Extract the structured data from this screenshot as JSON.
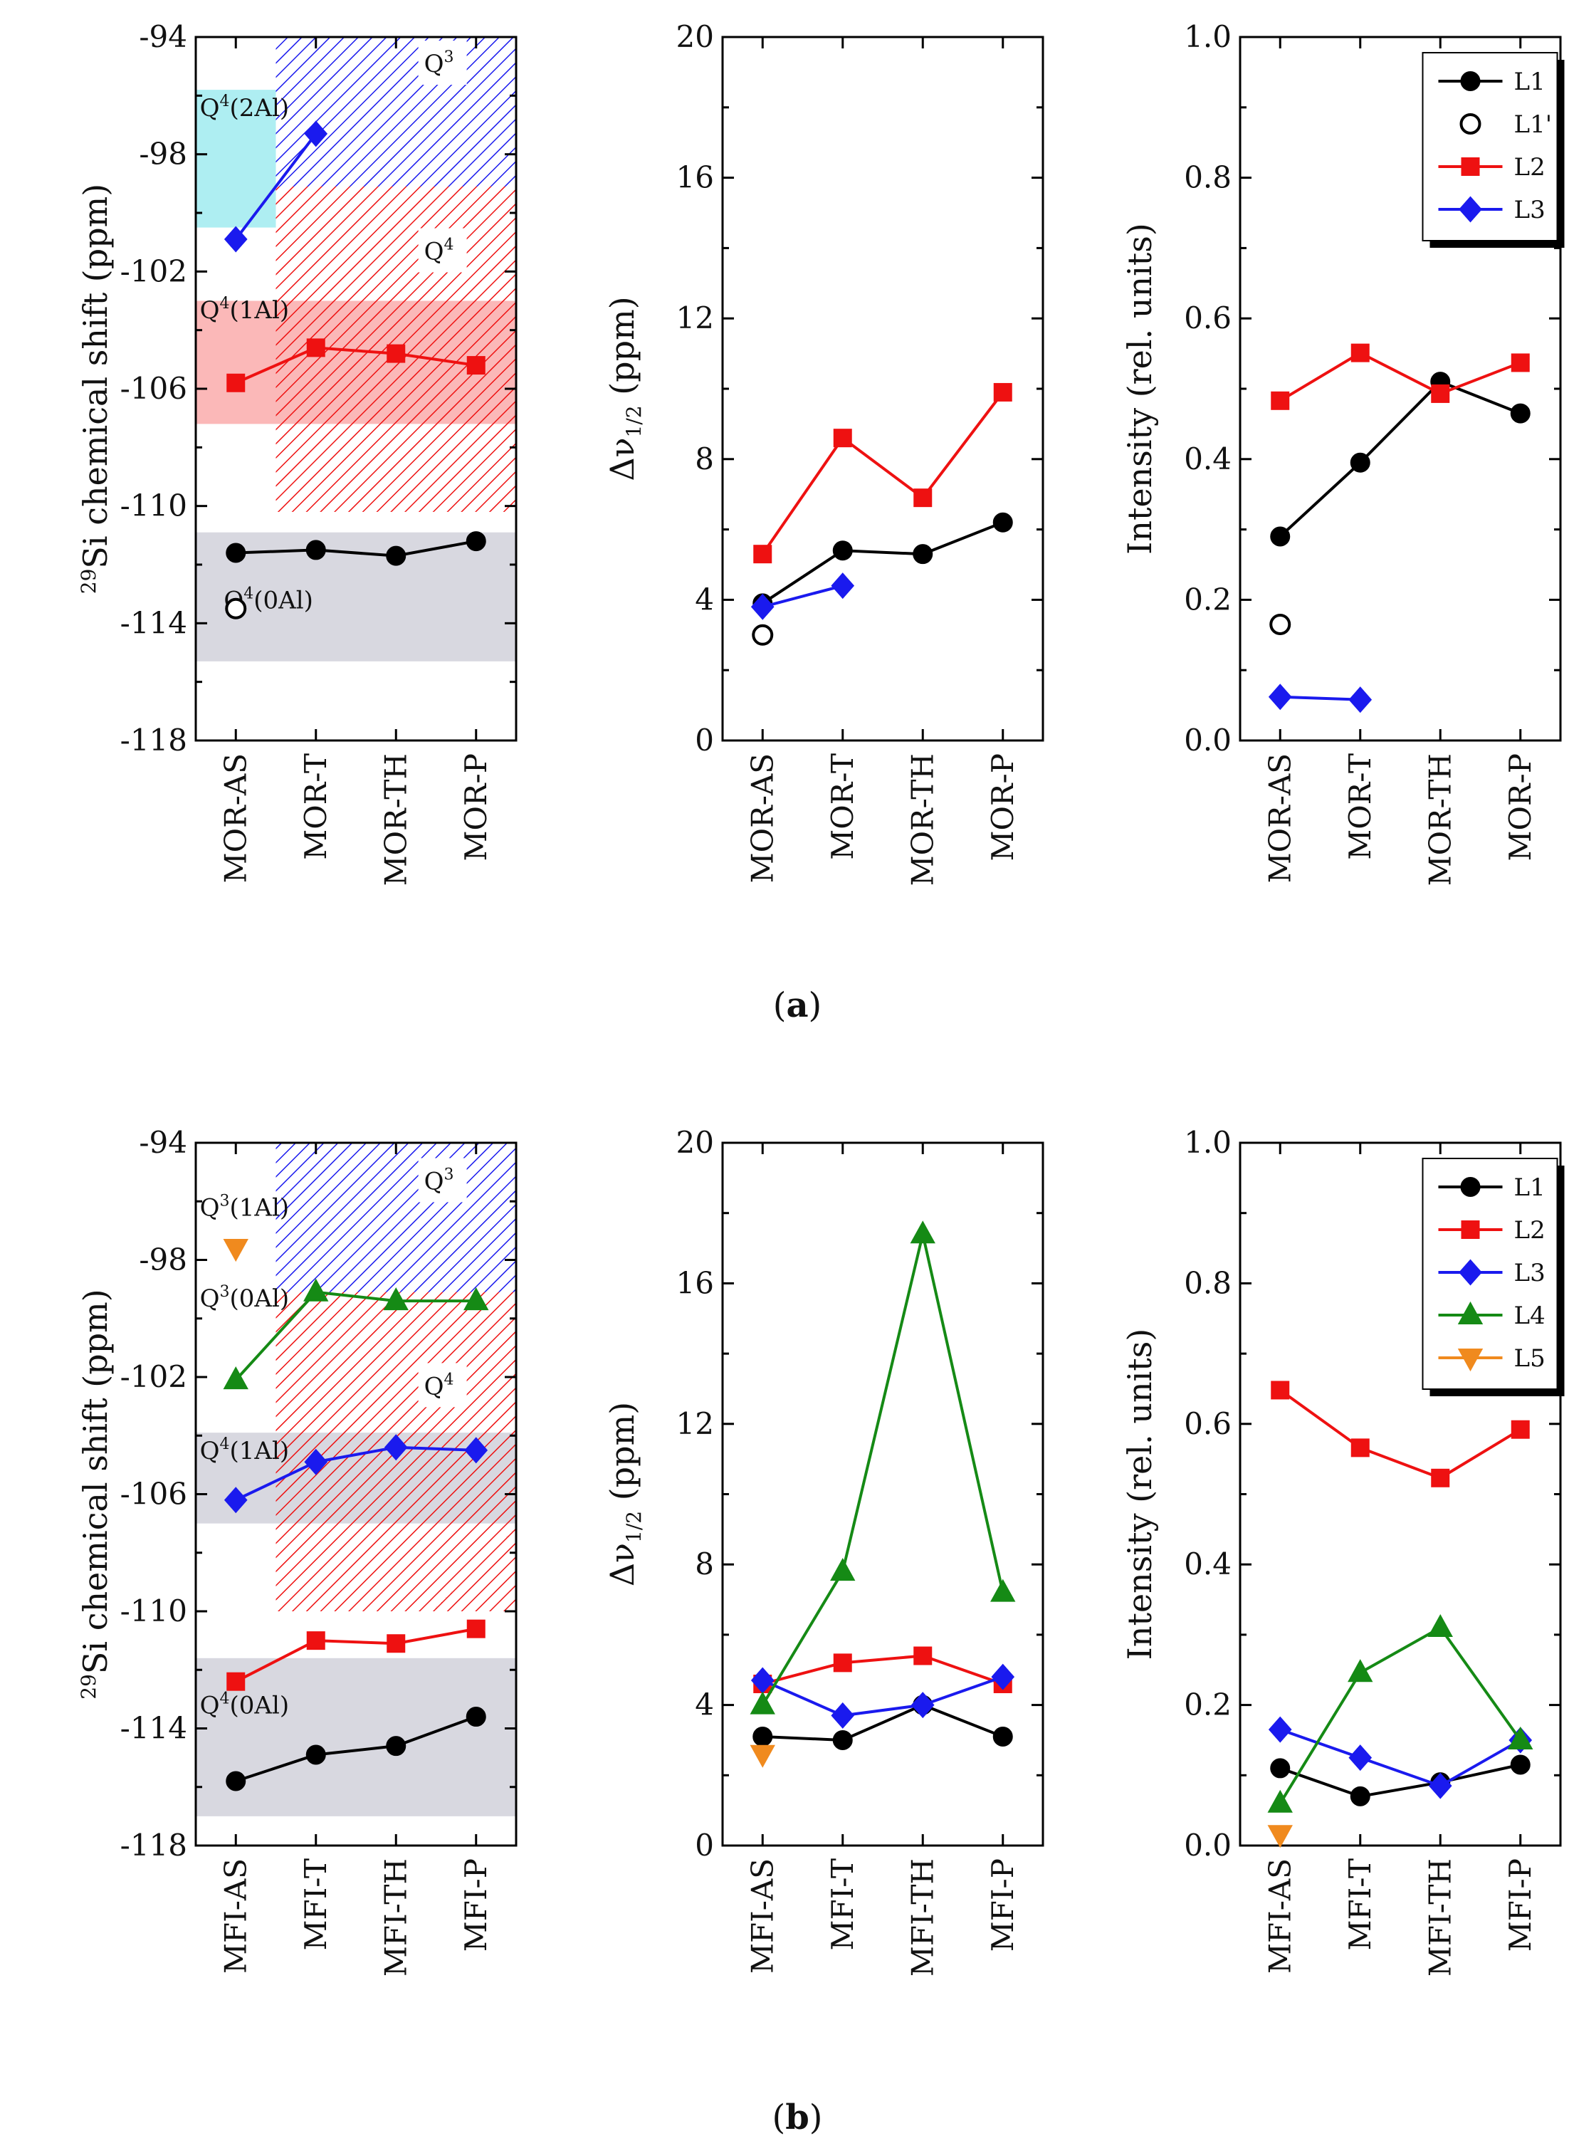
{
  "figure_labels": {
    "a": "(a)",
    "b": "(b)"
  },
  "colors": {
    "L1": "#000000",
    "L2": "#ee1111",
    "L3": "#1a1aee",
    "L4": "#158a15",
    "L5": "#f08a1e",
    "q3_fill": "#aeeef2",
    "q4_fill": "#fbb8b8",
    "q0_fill": "#d8d8e0"
  },
  "chart_data": [
    {
      "id": "a1",
      "type": "line",
      "ylabel": "29Si chemical shift (ppm)",
      "ylabel_sup": "29",
      "ylabel_main": "Si chemical shift (ppm)",
      "ylim": [
        -118,
        -94
      ],
      "reversed": true,
      "yticks": [
        -94,
        -98,
        -102,
        -106,
        -110,
        -114,
        -118
      ],
      "categories": [
        "MOR-AS",
        "MOR-T",
        "MOR-TH",
        "MOR-P"
      ],
      "regions": [
        {
          "kind": "fill",
          "color": "#aeeef2",
          "x_from": 0,
          "x_to": 1,
          "y_from": -95.8,
          "y_to": -100.5
        },
        {
          "kind": "fill",
          "color": "#fbb8b8",
          "x_from": 0,
          "x_to": 4,
          "y_from": -103.0,
          "y_to": -107.2
        },
        {
          "kind": "fill",
          "color": "#d8d8e0",
          "x_from": 0,
          "x_to": 4,
          "y_from": -110.9,
          "y_to": -115.3
        },
        {
          "kind": "hatch",
          "color": "#1a1aee",
          "x_from": 1,
          "x_to": 4,
          "y_from": -94,
          "y_to": -99.1
        },
        {
          "kind": "hatch",
          "color": "#ee1111",
          "x_from": 1,
          "x_to": 4,
          "y_from": -99.1,
          "y_to": -110.2
        }
      ],
      "annotations": [
        {
          "sup": "4",
          "pre": "Q",
          "post": "(2Al)",
          "x": 0.05,
          "y": -96.4
        },
        {
          "sup": "3",
          "pre": "Q",
          "post": "",
          "x": 2.85,
          "y": -94.9,
          "color": "#1a1aee",
          "box": true
        },
        {
          "sup": "4",
          "pre": "Q",
          "post": "",
          "x": 2.85,
          "y": -101.3,
          "color": "#ee1111",
          "box": true
        },
        {
          "sup": "4",
          "pre": "Q",
          "post": "(1Al)",
          "x": 0.05,
          "y": -103.3
        },
        {
          "sup": "4",
          "pre": "Q",
          "post": "(0Al)",
          "x": 0.35,
          "y": -113.2
        }
      ],
      "series": [
        {
          "name": "L1",
          "marker": "circle",
          "filled": true,
          "values": [
            -111.6,
            -111.5,
            -111.7,
            -111.2
          ]
        },
        {
          "name": "L1'",
          "marker": "circle",
          "filled": false,
          "values": [
            -113.5,
            null,
            null,
            null
          ]
        },
        {
          "name": "L2",
          "marker": "square",
          "filled": true,
          "values": [
            -105.8,
            -104.6,
            -104.8,
            -105.2
          ]
        },
        {
          "name": "L3",
          "marker": "diamond",
          "filled": true,
          "values": [
            -100.9,
            -97.3,
            null,
            null
          ]
        }
      ]
    },
    {
      "id": "a2",
      "type": "line",
      "ylabel": "Δν1/2 (ppm)",
      "ylabel_main": "Δν",
      "ylabel_sub": "1/2",
      "ylabel_post": " (ppm)",
      "ylim": [
        0,
        20
      ],
      "reversed": false,
      "yticks": [
        0,
        4,
        8,
        12,
        16,
        20
      ],
      "categories": [
        "MOR-AS",
        "MOR-T",
        "MOR-TH",
        "MOR-P"
      ],
      "series": [
        {
          "name": "L1",
          "marker": "circle",
          "filled": true,
          "values": [
            3.9,
            5.4,
            5.3,
            6.2
          ]
        },
        {
          "name": "L1'",
          "marker": "circle",
          "filled": false,
          "values": [
            3.0,
            null,
            null,
            null
          ]
        },
        {
          "name": "L2",
          "marker": "square",
          "filled": true,
          "values": [
            5.3,
            8.6,
            6.9,
            9.9
          ]
        },
        {
          "name": "L3",
          "marker": "diamond",
          "filled": true,
          "values": [
            3.8,
            4.4,
            null,
            null
          ]
        }
      ]
    },
    {
      "id": "a3",
      "type": "line",
      "ylabel": "Intensity (rel. units)",
      "ylim": [
        0,
        1
      ],
      "reversed": false,
      "yticks": [
        0.0,
        0.2,
        0.4,
        0.6,
        0.8,
        1.0
      ],
      "categories": [
        "MOR-AS",
        "MOR-T",
        "MOR-TH",
        "MOR-P"
      ],
      "legend": [
        "L1",
        "L1'",
        "L2",
        "L3"
      ],
      "series": [
        {
          "name": "L1",
          "marker": "circle",
          "filled": true,
          "values": [
            0.29,
            0.395,
            0.51,
            0.465
          ]
        },
        {
          "name": "L1'",
          "marker": "circle",
          "filled": false,
          "values": [
            0.165,
            null,
            null,
            null
          ]
        },
        {
          "name": "L2",
          "marker": "square",
          "filled": true,
          "values": [
            0.483,
            0.551,
            0.493,
            0.537
          ]
        },
        {
          "name": "L3",
          "marker": "diamond",
          "filled": true,
          "values": [
            0.062,
            0.058,
            null,
            null
          ]
        }
      ]
    },
    {
      "id": "b1",
      "type": "line",
      "ylabel": "29Si chemical shift (ppm)",
      "ylabel_sup": "29",
      "ylabel_main": "Si chemical shift (ppm)",
      "ylim": [
        -118,
        -94
      ],
      "reversed": true,
      "yticks": [
        -94,
        -98,
        -102,
        -106,
        -110,
        -114,
        -118
      ],
      "categories": [
        "MFI-AS",
        "MFI-T",
        "MFI-TH",
        "MFI-P"
      ],
      "regions": [
        {
          "kind": "fill",
          "color": "#d8d8e0",
          "x_from": 0,
          "x_to": 4,
          "y_from": -103.9,
          "y_to": -107.0
        },
        {
          "kind": "fill",
          "color": "#d8d8e0",
          "x_from": 0,
          "x_to": 4,
          "y_from": -111.6,
          "y_to": -117.0
        },
        {
          "kind": "hatch",
          "color": "#1a1aee",
          "x_from": 1,
          "x_to": 4,
          "y_from": -94,
          "y_to": -99.1
        },
        {
          "kind": "hatch",
          "color": "#ee1111",
          "x_from": 1,
          "x_to": 4,
          "y_from": -99.1,
          "y_to": -110.0
        }
      ],
      "annotations": [
        {
          "sup": "3",
          "pre": "Q",
          "post": "(1Al)",
          "x": 0.05,
          "y": -96.2
        },
        {
          "sup": "3",
          "pre": "Q",
          "post": "(0Al)",
          "x": 0.05,
          "y": -99.3
        },
        {
          "sup": "3",
          "pre": "Q",
          "post": "",
          "x": 2.85,
          "y": -95.3,
          "box": true
        },
        {
          "sup": "4",
          "pre": "Q",
          "post": "",
          "x": 2.85,
          "y": -102.3,
          "box": true
        },
        {
          "sup": "4",
          "pre": "Q",
          "post": "(1Al)",
          "x": 0.05,
          "y": -104.5
        },
        {
          "sup": "4",
          "pre": "Q",
          "post": "(0Al)",
          "x": 0.05,
          "y": -113.2
        }
      ],
      "series": [
        {
          "name": "L1",
          "marker": "circle",
          "filled": true,
          "values": [
            -115.8,
            -114.9,
            -114.6,
            -113.6
          ]
        },
        {
          "name": "L2",
          "marker": "square",
          "filled": true,
          "values": [
            -112.4,
            -111.0,
            -111.1,
            -110.6
          ]
        },
        {
          "name": "L3",
          "marker": "diamond",
          "filled": true,
          "values": [
            -106.2,
            -104.9,
            -104.4,
            -104.5
          ]
        },
        {
          "name": "L4",
          "marker": "triangle-up",
          "filled": true,
          "values": [
            -102.1,
            -99.1,
            -99.4,
            -99.4
          ]
        },
        {
          "name": "L5",
          "marker": "triangle-down",
          "filled": true,
          "values": [
            -97.6,
            null,
            null,
            null
          ]
        }
      ]
    },
    {
      "id": "b2",
      "type": "line",
      "ylabel": "Δν1/2 (ppm)",
      "ylabel_main": "Δν",
      "ylabel_sub": "1/2",
      "ylabel_post": " (ppm)",
      "ylim": [
        0,
        20
      ],
      "reversed": false,
      "yticks": [
        0,
        4,
        8,
        12,
        16,
        20
      ],
      "categories": [
        "MFI-AS",
        "MFI-T",
        "MFI-TH",
        "MFI-P"
      ],
      "series": [
        {
          "name": "L1",
          "marker": "circle",
          "filled": true,
          "values": [
            3.1,
            3.0,
            4.0,
            3.1
          ]
        },
        {
          "name": "L2",
          "marker": "square",
          "filled": true,
          "values": [
            4.6,
            5.2,
            5.4,
            4.6
          ]
        },
        {
          "name": "L3",
          "marker": "diamond",
          "filled": true,
          "values": [
            4.7,
            3.7,
            4.0,
            4.8
          ]
        },
        {
          "name": "L4",
          "marker": "triangle-up",
          "filled": true,
          "values": [
            4.0,
            7.8,
            17.4,
            7.2
          ]
        },
        {
          "name": "L5",
          "marker": "triangle-down",
          "filled": true,
          "values": [
            2.6,
            null,
            null,
            null
          ]
        }
      ]
    },
    {
      "id": "b3",
      "type": "line",
      "ylabel": "Intensity (rel. units)",
      "ylim": [
        0,
        1
      ],
      "reversed": false,
      "yticks": [
        0.0,
        0.2,
        0.4,
        0.6,
        0.8,
        1.0
      ],
      "categories": [
        "MFI-AS",
        "MFI-T",
        "MFI-TH",
        "MFI-P"
      ],
      "legend": [
        "L1",
        "L2",
        "L3",
        "L4",
        "L5"
      ],
      "series": [
        {
          "name": "L1",
          "marker": "circle",
          "filled": true,
          "values": [
            0.11,
            0.07,
            0.09,
            0.115
          ]
        },
        {
          "name": "L2",
          "marker": "square",
          "filled": true,
          "values": [
            0.648,
            0.566,
            0.523,
            0.592
          ]
        },
        {
          "name": "L3",
          "marker": "diamond",
          "filled": true,
          "values": [
            0.165,
            0.125,
            0.085,
            0.15
          ]
        },
        {
          "name": "L4",
          "marker": "triangle-up",
          "filled": true,
          "values": [
            0.06,
            0.246,
            0.31,
            0.15
          ]
        },
        {
          "name": "L5",
          "marker": "triangle-down",
          "filled": true,
          "values": [
            0.016,
            null,
            null,
            null
          ]
        }
      ]
    }
  ]
}
